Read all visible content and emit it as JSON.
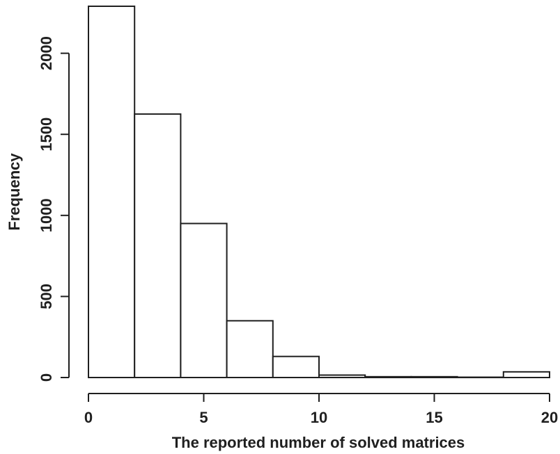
{
  "chart_data": {
    "type": "bar",
    "title": "",
    "xlabel": "The reported number of solved matrices",
    "ylabel": "Frequency",
    "bins": [
      {
        "start": 0,
        "end": 2,
        "value": 2290
      },
      {
        "start": 2,
        "end": 4,
        "value": 1625
      },
      {
        "start": 4,
        "end": 6,
        "value": 950
      },
      {
        "start": 6,
        "end": 8,
        "value": 350
      },
      {
        "start": 8,
        "end": 10,
        "value": 130
      },
      {
        "start": 10,
        "end": 12,
        "value": 15
      },
      {
        "start": 12,
        "end": 14,
        "value": 5
      },
      {
        "start": 14,
        "end": 16,
        "value": 5
      },
      {
        "start": 16,
        "end": 18,
        "value": 2
      },
      {
        "start": 18,
        "end": 20,
        "value": 35
      }
    ],
    "xlim": [
      0,
      20
    ],
    "ylim": [
      0,
      2290
    ],
    "x_ticks": [
      0,
      5,
      10,
      15,
      20
    ],
    "x_tick_labels": [
      "0",
      "5",
      "10",
      "15",
      "20"
    ],
    "y_ticks": [
      0,
      500,
      1000,
      1500,
      2000
    ],
    "y_tick_labels": [
      "0",
      "500",
      "1000",
      "1500",
      "2000"
    ],
    "grid": false,
    "legend": "none",
    "colors": {
      "bar_fill": "#ffffff",
      "bar_edge": "#1f1f1f",
      "text": "#1f1f1f"
    }
  }
}
